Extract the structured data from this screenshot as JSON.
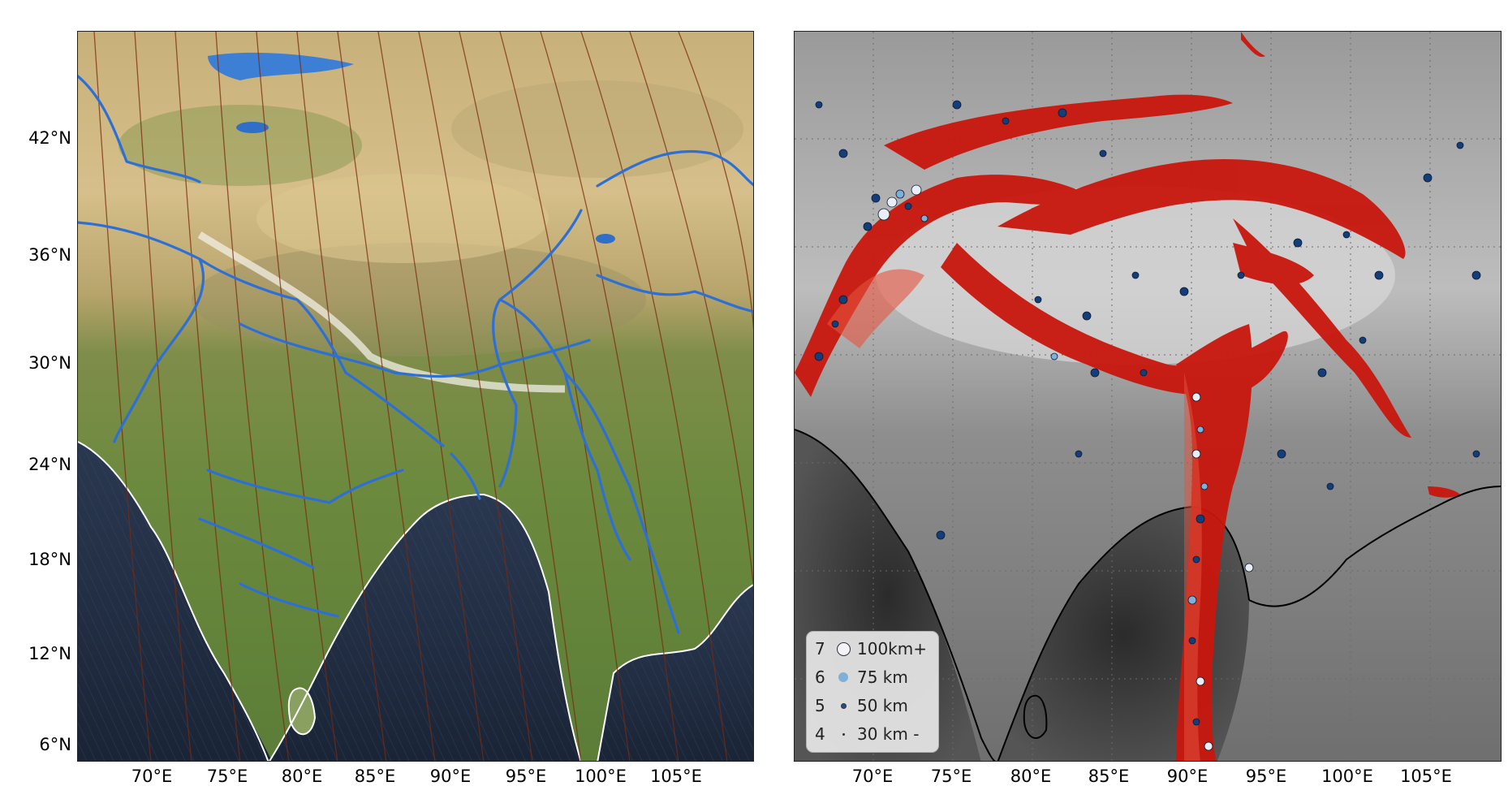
{
  "left_map": {
    "y_ticks": [
      "42°N",
      "36°N",
      "30°N",
      "24°N",
      "18°N",
      "12°N",
      "6°N"
    ],
    "x_ticks": [
      "70°E",
      "75°E",
      "80°E",
      "85°E",
      "90°E",
      "95°E",
      "100°E",
      "105°E"
    ]
  },
  "right_map": {
    "x_ticks": [
      "70°E",
      "75°E",
      "80°E",
      "85°E",
      "90°E",
      "95°E",
      "100°E",
      "105°E"
    ],
    "legend": [
      {
        "magnitude": "7",
        "label": "100km+",
        "color": "#f2f4f8"
      },
      {
        "magnitude": "6",
        "label": "75 km",
        "color": "#7fb1d8"
      },
      {
        "magnitude": "5",
        "label": "50 km",
        "color": "#1f4f8c"
      },
      {
        "magnitude": "4",
        "label": "30 km -",
        "color": "#0d2c63"
      }
    ]
  },
  "colors": {
    "river": "#2e6fd6",
    "contour": "#7a2a0e",
    "fault_zone": "#c8170d",
    "quake_dark": "#143d7a",
    "quake_light": "#e9eef6",
    "ocean": "#1c2a3e"
  }
}
